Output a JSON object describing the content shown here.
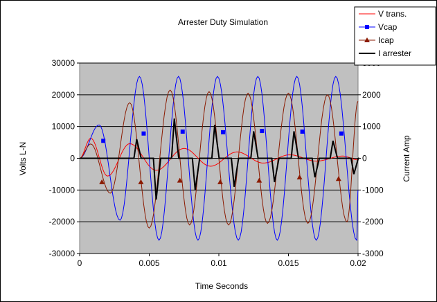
{
  "chart_data": {
    "type": "line",
    "title": "Arrester Duty Simulation",
    "xlabel": "Time Seconds",
    "ylabel": "Volts L-N",
    "y2label": "Current Amp",
    "xlim": [
      0,
      0.02
    ],
    "ylim": [
      -30000,
      30000
    ],
    "y2lim": [
      -3000,
      3000
    ],
    "x_ticks": [
      "0",
      "0.005",
      "0.01",
      "0.015",
      "0.02"
    ],
    "y_ticks": [
      "-30000",
      "-20000",
      "-10000",
      "0",
      "10000",
      "20000",
      "30000"
    ],
    "y2_ticks": [
      "-3000",
      "-2000",
      "-1000",
      "0",
      "1000",
      "2000",
      "3000"
    ],
    "grid": "horizontal major gridlines",
    "plot_background": "#c0c0c0",
    "legend_position": "top-right",
    "legend": [
      "V trans.",
      "Vcap",
      "Icap",
      "I arrester"
    ],
    "series": [
      {
        "name": "V trans.",
        "axis": "left",
        "color": "#ff0000",
        "marker": "none",
        "x": [
          0,
          0.0008,
          0.002,
          0.0036,
          0.0055,
          0.0075,
          0.0094,
          0.0113,
          0.0132,
          0.0151,
          0.017,
          0.0189,
          0.02
        ],
        "y": [
          0,
          6300,
          -5600,
          4600,
          -3800,
          3100,
          -2500,
          2000,
          -1500,
          1100,
          -900,
          700,
          -500
        ]
      },
      {
        "name": "Vcap",
        "axis": "left",
        "color": "#0000ff",
        "marker": "square",
        "x": [
          0,
          0.0014,
          0.0029,
          0.0043,
          0.0057,
          0.0071,
          0.0085,
          0.0099,
          0.0114,
          0.0128,
          0.0142,
          0.0156,
          0.017,
          0.0184,
          0.0199,
          0.02
        ],
        "y": [
          0,
          10500,
          -19500,
          25800,
          -25800,
          25800,
          -25800,
          25800,
          -25800,
          25800,
          -25800,
          25800,
          -25800,
          25800,
          -25800,
          -10000
        ],
        "marker_x": [
          0.0017,
          0.0046,
          0.0074,
          0.0103,
          0.0131,
          0.016,
          0.0188
        ],
        "marker_y": [
          5500,
          7800,
          8400,
          8200,
          8600,
          8400,
          7800
        ]
      },
      {
        "name": "Icap",
        "axis": "right",
        "color": "#8b1a00",
        "marker": "triangle",
        "x": [
          0,
          0.0008,
          0.0022,
          0.0036,
          0.005,
          0.0065,
          0.0079,
          0.0093,
          0.0107,
          0.0121,
          0.0135,
          0.015,
          0.0164,
          0.0178,
          0.0192,
          0.02
        ],
        "y": [
          0,
          450,
          -1100,
          1750,
          -2200,
          2150,
          -2100,
          2100,
          -2100,
          2050,
          -2050,
          2050,
          -2050,
          2000,
          -2000,
          1800
        ],
        "marker_x": [
          0.0016,
          0.0044,
          0.0072,
          0.0101,
          0.0129,
          0.0158,
          0.0186
        ],
        "marker_y": [
          -750,
          -750,
          -700,
          -750,
          -700,
          -600,
          -650
        ]
      },
      {
        "name": "I arrester",
        "axis": "right",
        "color": "#000000",
        "marker": "none",
        "pulses": [
          {
            "start": 0.0039,
            "peak": 0.0041,
            "value": 600
          },
          {
            "start": 0.0053,
            "peak": 0.0055,
            "value": -1300
          },
          {
            "start": 0.0066,
            "peak": 0.0068,
            "value": 1250
          },
          {
            "start": 0.0081,
            "peak": 0.0083,
            "value": -1000
          },
          {
            "start": 0.0095,
            "peak": 0.0097,
            "value": 1050
          },
          {
            "start": 0.0109,
            "peak": 0.0111,
            "value": -900
          },
          {
            "start": 0.0123,
            "peak": 0.0125,
            "value": 850
          },
          {
            "start": 0.0138,
            "peak": 0.014,
            "value": -750
          },
          {
            "start": 0.0152,
            "peak": 0.0154,
            "value": 850
          },
          {
            "start": 0.0167,
            "peak": 0.0169,
            "value": -600
          },
          {
            "start": 0.018,
            "peak": 0.0182,
            "value": 550
          },
          {
            "start": 0.0195,
            "peak": 0.0197,
            "value": -500
          }
        ]
      }
    ]
  }
}
